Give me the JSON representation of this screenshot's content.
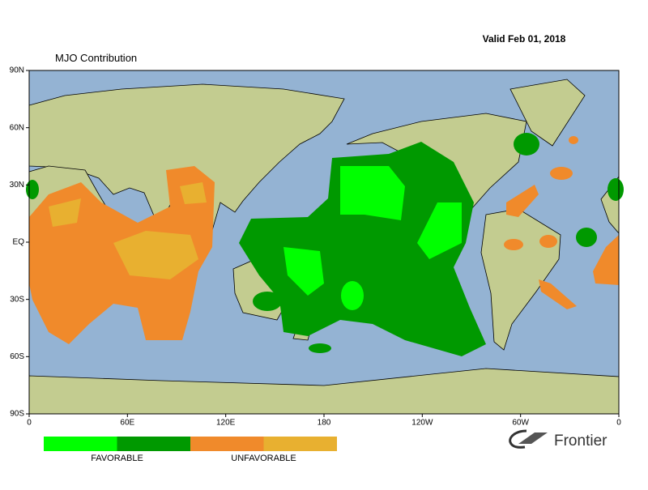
{
  "header": {
    "valid": "Valid Feb 01, 2018",
    "title": "MJO Contribution"
  },
  "map": {
    "lat_labels": [
      "90N",
      "60N",
      "30N",
      "EQ",
      "30S",
      "60S",
      "90S"
    ],
    "lon_labels": [
      "0",
      "60E",
      "120E",
      "180",
      "120W",
      "60W",
      "0"
    ]
  },
  "legend": {
    "colors": [
      "#00ff00",
      "#009900",
      "#f08a2b",
      "#e8b030"
    ],
    "labels": [
      "FAVORABLE",
      "UNFAVORABLE"
    ]
  },
  "logo": {
    "text": "Frontier"
  }
}
